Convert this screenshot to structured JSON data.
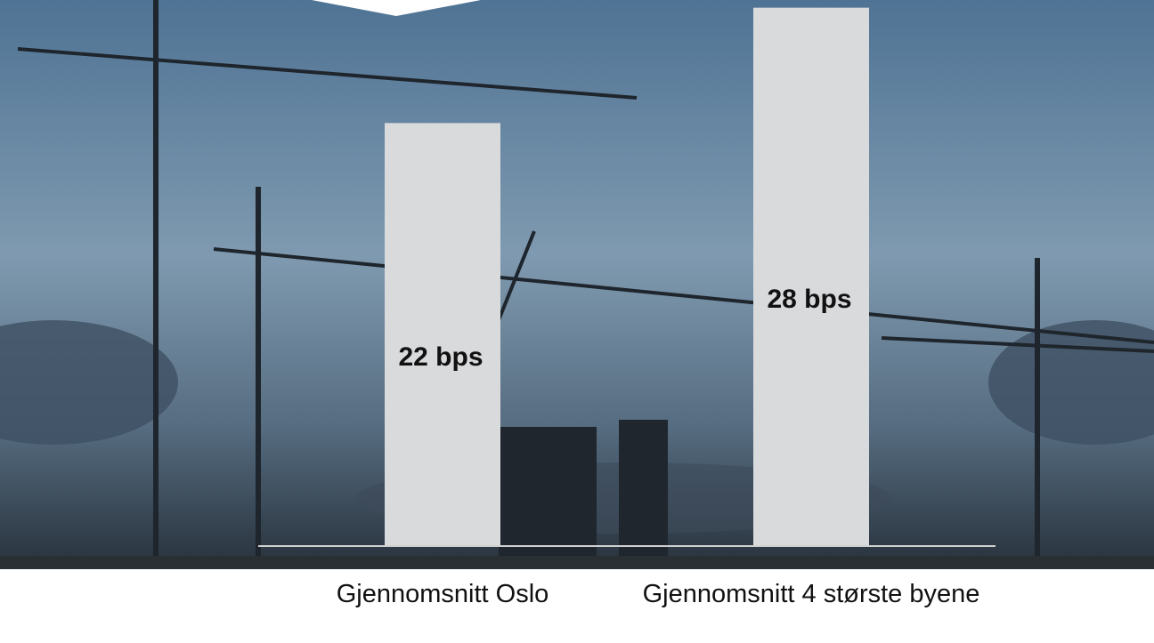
{
  "chart_data": {
    "type": "bar",
    "categories": [
      "Gjennomsnitt Oslo",
      "Gjennomsnitt 4 største byene"
    ],
    "values": [
      22,
      28
    ],
    "value_labels": [
      "22 bps",
      "28 bps"
    ],
    "color": "#d9dadc",
    "ylim": [
      0,
      28.4
    ]
  }
}
